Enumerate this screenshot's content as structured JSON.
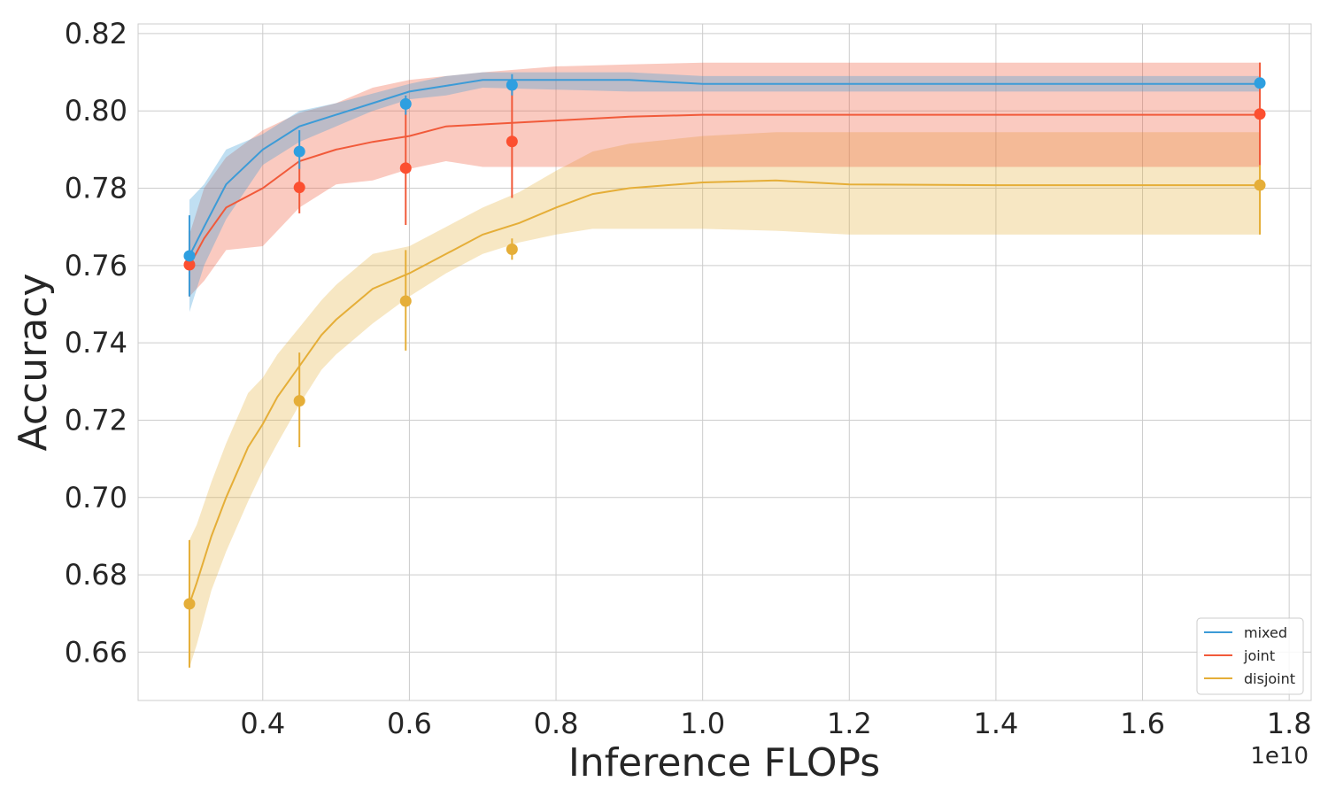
{
  "chart_data": {
    "type": "line",
    "title": "",
    "xlabel": "Inference FLOPs",
    "ylabel": "Accuracy",
    "x_offset_label": "1e10",
    "x_scale": 10000000000.0,
    "xlim": [
      0.23,
      1.83
    ],
    "ylim": [
      0.6475,
      0.8225
    ],
    "x_ticks": [
      0.4,
      0.6,
      0.8,
      1.0,
      1.2,
      1.4,
      1.6,
      1.8
    ],
    "x_tick_labels": [
      "0.4",
      "0.6",
      "0.8",
      "1.0",
      "1.2",
      "1.4",
      "1.6",
      "1.8"
    ],
    "y_ticks": [
      0.66,
      0.68,
      0.7,
      0.72,
      0.74,
      0.76,
      0.78,
      0.8,
      0.82
    ],
    "y_tick_labels": [
      "0.66",
      "0.68",
      "0.70",
      "0.72",
      "0.74",
      "0.76",
      "0.78",
      "0.80",
      "0.82"
    ],
    "grid": true,
    "legend_position": "bottom-right",
    "series": [
      {
        "name": "mixed",
        "color": "#3c9bd7",
        "marker_color": "#2e9fe0",
        "x": [
          0.3,
          0.32,
          0.35,
          0.4,
          0.45,
          0.5,
          0.55,
          0.6,
          0.65,
          0.7,
          0.8,
          0.9,
          1.0,
          1.2,
          1.4,
          1.6,
          1.76
        ],
        "y": [
          0.7625,
          0.77,
          0.781,
          0.79,
          0.796,
          0.799,
          0.802,
          0.805,
          0.8065,
          0.808,
          0.808,
          0.808,
          0.807,
          0.807,
          0.807,
          0.807,
          0.807
        ],
        "lower": [
          0.748,
          0.76,
          0.772,
          0.786,
          0.792,
          0.796,
          0.8,
          0.803,
          0.804,
          0.806,
          0.8055,
          0.805,
          0.805,
          0.805,
          0.805,
          0.805,
          0.805
        ],
        "upper": [
          0.777,
          0.781,
          0.79,
          0.794,
          0.8,
          0.802,
          0.8045,
          0.807,
          0.809,
          0.81,
          0.81,
          0.81,
          0.809,
          0.809,
          0.809,
          0.809,
          0.809
        ],
        "points": {
          "x": [
            0.3,
            0.45,
            0.595,
            0.74,
            1.76
          ],
          "y": [
            0.7625,
            0.7895,
            0.8018,
            0.8067,
            0.8072
          ],
          "err_low": [
            0.752,
            0.785,
            0.799,
            0.804,
            0.806
          ],
          "err_high": [
            0.773,
            0.795,
            0.804,
            0.8095,
            0.8085
          ]
        }
      },
      {
        "name": "joint",
        "color": "#f15a3a",
        "marker_color": "#fc4f30",
        "x": [
          0.3,
          0.32,
          0.35,
          0.4,
          0.45,
          0.5,
          0.55,
          0.6,
          0.65,
          0.7,
          0.8,
          0.9,
          1.0,
          1.2,
          1.4,
          1.6,
          1.76
        ],
        "y": [
          0.76,
          0.767,
          0.775,
          0.78,
          0.787,
          0.79,
          0.792,
          0.7935,
          0.796,
          0.7965,
          0.7975,
          0.7985,
          0.799,
          0.799,
          0.799,
          0.799,
          0.799
        ],
        "lower": [
          0.752,
          0.756,
          0.764,
          0.765,
          0.775,
          0.781,
          0.782,
          0.785,
          0.787,
          0.7855,
          0.7855,
          0.7855,
          0.7855,
          0.7855,
          0.7855,
          0.7855,
          0.7855
        ],
        "upper": [
          0.768,
          0.78,
          0.788,
          0.795,
          0.7995,
          0.802,
          0.806,
          0.808,
          0.809,
          0.81,
          0.8115,
          0.812,
          0.8125,
          0.8125,
          0.8125,
          0.8125,
          0.8125
        ],
        "points": {
          "x": [
            0.3,
            0.45,
            0.595,
            0.74,
            1.76
          ],
          "y": [
            0.7602,
            0.7802,
            0.7852,
            0.7921,
            0.7992
          ],
          "err_low": [
            0.752,
            0.7735,
            0.7705,
            0.7775,
            0.786
          ],
          "err_high": [
            0.769,
            0.787,
            0.8,
            0.807,
            0.8125
          ]
        }
      },
      {
        "name": "disjoint",
        "color": "#e5ae38",
        "marker_color": "#e5ae38",
        "x": [
          0.3,
          0.31,
          0.33,
          0.35,
          0.38,
          0.4,
          0.42,
          0.45,
          0.48,
          0.5,
          0.55,
          0.6,
          0.65,
          0.7,
          0.75,
          0.8,
          0.85,
          0.9,
          1.0,
          1.1,
          1.2,
          1.4,
          1.6,
          1.76
        ],
        "y": [
          0.6725,
          0.678,
          0.69,
          0.7,
          0.713,
          0.719,
          0.726,
          0.734,
          0.742,
          0.746,
          0.754,
          0.758,
          0.763,
          0.768,
          0.771,
          0.775,
          0.7785,
          0.78,
          0.7815,
          0.782,
          0.781,
          0.7808,
          0.7808,
          0.7808
        ],
        "lower": [
          0.656,
          0.662,
          0.676,
          0.686,
          0.699,
          0.707,
          0.714,
          0.724,
          0.733,
          0.737,
          0.745,
          0.752,
          0.758,
          0.763,
          0.766,
          0.768,
          0.7695,
          0.7695,
          0.7695,
          0.769,
          0.768,
          0.768,
          0.768,
          0.768
        ],
        "upper": [
          0.689,
          0.693,
          0.704,
          0.714,
          0.727,
          0.731,
          0.737,
          0.744,
          0.751,
          0.755,
          0.763,
          0.765,
          0.77,
          0.775,
          0.779,
          0.7845,
          0.7895,
          0.7915,
          0.7935,
          0.7945,
          0.7945,
          0.7945,
          0.7945,
          0.7945
        ],
        "points": {
          "x": [
            0.3,
            0.45,
            0.595,
            0.74,
            1.76
          ],
          "y": [
            0.6725,
            0.725,
            0.7508,
            0.7642,
            0.7808
          ],
          "err_low": [
            0.656,
            0.713,
            0.738,
            0.7615,
            0.768
          ],
          "err_high": [
            0.689,
            0.7375,
            0.764,
            0.767,
            0.7945
          ]
        }
      }
    ]
  }
}
